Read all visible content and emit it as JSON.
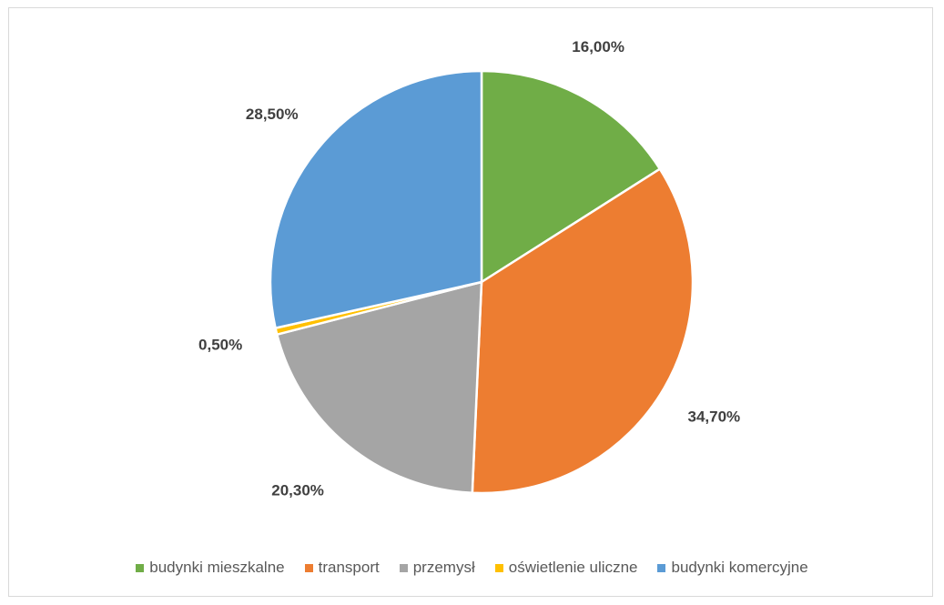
{
  "chart_data": {
    "type": "pie",
    "categories": [
      "budynki mieszkalne",
      "transport",
      "przemysł",
      "oświetlenie uliczne",
      "budynki komercyjne"
    ],
    "values": [
      16.0,
      34.7,
      20.3,
      0.5,
      28.5
    ],
    "labels": [
      "16,00%",
      "34,70%",
      "20,30%",
      "0,50%",
      "28,50%"
    ],
    "colors": [
      "#70ad47",
      "#ed7d31",
      "#a5a5a5",
      "#ffc000",
      "#5b9bd5"
    ],
    "legend_position": "bottom",
    "title": ""
  }
}
